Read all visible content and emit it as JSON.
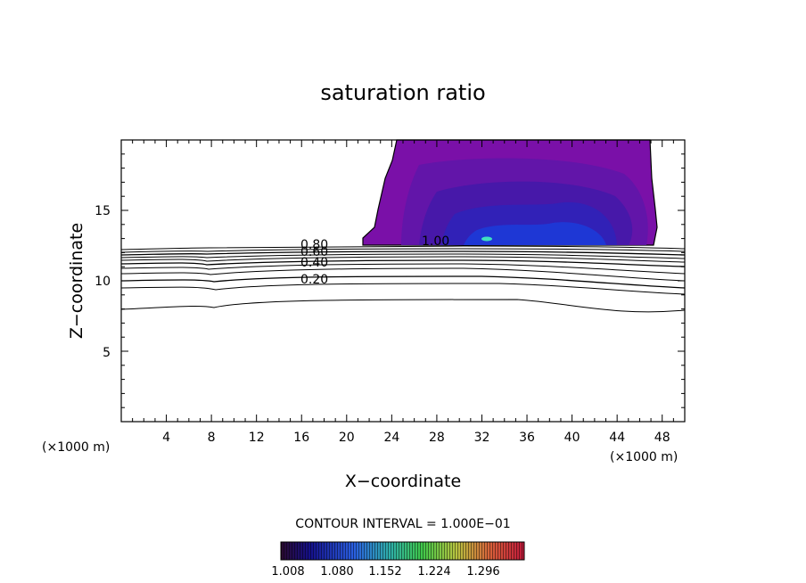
{
  "chart_data": {
    "type": "contour",
    "title": "saturation ratio",
    "xlabel": "X−coordinate",
    "ylabel": "Z−coordinate",
    "x_unit_left": "(×1000 m)",
    "x_unit_right": "(×1000 m)",
    "xlim": [
      0,
      50
    ],
    "ylim": [
      0,
      20
    ],
    "x_ticks": [
      "4",
      "8",
      "12",
      "16",
      "20",
      "24",
      "28",
      "32",
      "36",
      "40",
      "44",
      "48"
    ],
    "y_ticks": [
      "5",
      "10",
      "15"
    ],
    "contour_interval_text": "CONTOUR INTERVAL = 1.000E−01",
    "contour_labels": [
      "0.80",
      "0.60",
      "0.40",
      "0.20",
      "1.00"
    ],
    "colorbar_labels": [
      "1.008",
      "1.080",
      "1.152",
      "1.224",
      "1.296"
    ],
    "colorbar_range": [
      1.008,
      1.296
    ]
  }
}
